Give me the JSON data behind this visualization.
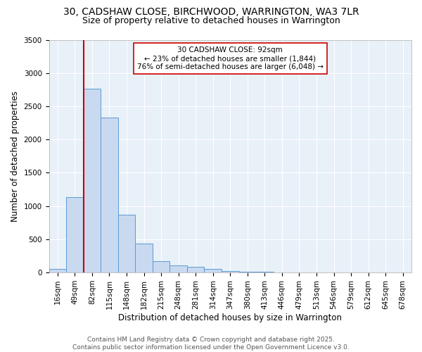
{
  "title1": "30, CADSHAW CLOSE, BIRCHWOOD, WARRINGTON, WA3 7LR",
  "title2": "Size of property relative to detached houses in Warrington",
  "xlabel": "Distribution of detached houses by size in Warrington",
  "ylabel": "Number of detached properties",
  "bar_labels": [
    "16sqm",
    "49sqm",
    "82sqm",
    "115sqm",
    "148sqm",
    "182sqm",
    "215sqm",
    "248sqm",
    "281sqm",
    "314sqm",
    "347sqm",
    "380sqm",
    "413sqm",
    "446sqm",
    "479sqm",
    "513sqm",
    "546sqm",
    "579sqm",
    "612sqm",
    "645sqm",
    "678sqm"
  ],
  "bar_values": [
    50,
    1130,
    2760,
    2330,
    870,
    440,
    175,
    110,
    90,
    50,
    25,
    15,
    10,
    5,
    3,
    2,
    1,
    1,
    0,
    0,
    0
  ],
  "bar_facecolor": "#c9d9f0",
  "bar_edgecolor": "#5b9bd5",
  "vline_index": 2,
  "vline_color": "#cc0000",
  "annotation_line1": "30 CADSHAW CLOSE: 92sqm",
  "annotation_line2": "← 23% of detached houses are smaller (1,844)",
  "annotation_line3": "76% of semi-detached houses are larger (6,048) →",
  "annotation_box_edgecolor": "#cc0000",
  "annotation_box_facecolor": "white",
  "ylim": [
    0,
    3500
  ],
  "yticks": [
    0,
    500,
    1000,
    1500,
    2000,
    2500,
    3000,
    3500
  ],
  "background_color": "#e8f0f8",
  "grid_color": "white",
  "footer_text": "Contains HM Land Registry data © Crown copyright and database right 2025.\nContains public sector information licensed under the Open Government Licence v3.0.",
  "title1_fontsize": 10,
  "title2_fontsize": 9,
  "xlabel_fontsize": 8.5,
  "ylabel_fontsize": 8.5,
  "tick_fontsize": 7.5,
  "annotation_fontsize": 7.5,
  "footer_fontsize": 6.5
}
